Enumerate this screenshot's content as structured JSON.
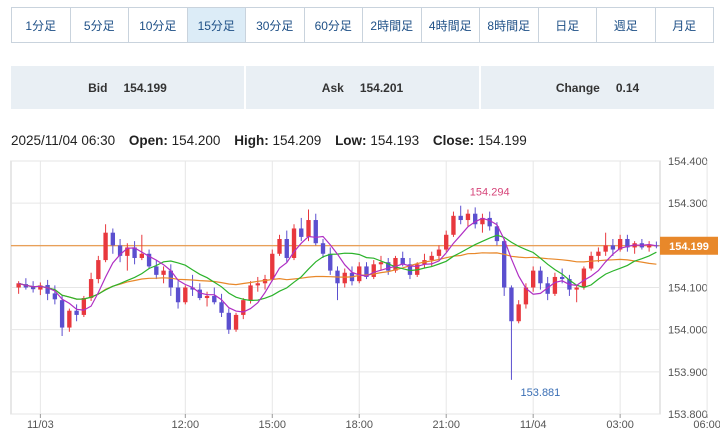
{
  "timeframe_tabs": [
    {
      "label": "1分足",
      "active": false
    },
    {
      "label": "5分足",
      "active": false
    },
    {
      "label": "10分足",
      "active": false
    },
    {
      "label": "15分足",
      "active": true
    },
    {
      "label": "30分足",
      "active": false
    },
    {
      "label": "60分足",
      "active": false
    },
    {
      "label": "2時間足",
      "active": false
    },
    {
      "label": "4時間足",
      "active": false
    },
    {
      "label": "8時間足",
      "active": false
    },
    {
      "label": "日足",
      "active": false
    },
    {
      "label": "週足",
      "active": false
    },
    {
      "label": "月足",
      "active": false
    }
  ],
  "quote": {
    "bid_label": "Bid",
    "bid_value": "154.199",
    "ask_label": "Ask",
    "ask_value": "154.201",
    "change_label": "Change",
    "change_value": "0.14"
  },
  "ohlc": {
    "datetime": "2025/11/04 06:30",
    "open_label": "Open:",
    "open": "154.200",
    "high_label": "High:",
    "high": "154.209",
    "low_label": "Low:",
    "low": "154.193",
    "close_label": "Close:",
    "close": "154.199"
  },
  "colors": {
    "up": "#e8383d",
    "down": "#5b4fcf",
    "ma_short": "#b02fc4",
    "ma_mid": "#2bb32b",
    "ma_long": "#e8882a",
    "current_line": "#e8882a",
    "grid": "#e6e6e6",
    "high_label": "#d6457a",
    "low_label": "#3a6fb5"
  },
  "chart_data": {
    "type": "candlestick",
    "ylim": [
      153.8,
      154.4
    ],
    "y_ticks": [
      "154.400",
      "154.300",
      "154.200",
      "154.100",
      "154.000",
      "153.900",
      "153.800"
    ],
    "x_ticks": [
      {
        "label": "11/03",
        "index": 3
      },
      {
        "label": "12:00",
        "index": 23
      },
      {
        "label": "15:00",
        "index": 35
      },
      {
        "label": "18:00",
        "index": 47
      },
      {
        "label": "21:00",
        "index": 59
      },
      {
        "label": "11/04",
        "index": 71
      },
      {
        "label": "03:00",
        "index": 83
      },
      {
        "label": "06:00",
        "index": 95
      }
    ],
    "current_price": "154.199",
    "annotations": [
      {
        "text": "154.294",
        "index": 65,
        "value": 154.294,
        "position": "above"
      },
      {
        "text": "153.881",
        "index": 72,
        "value": 153.881,
        "position": "below"
      }
    ],
    "candles": [
      [
        154.1,
        154.115,
        154.085,
        154.11
      ],
      [
        154.108,
        154.122,
        154.095,
        154.1
      ],
      [
        154.102,
        154.115,
        154.088,
        154.096
      ],
      [
        154.095,
        154.112,
        154.082,
        154.105
      ],
      [
        154.106,
        154.118,
        154.07,
        154.085
      ],
      [
        154.086,
        154.105,
        154.06,
        154.072
      ],
      [
        154.07,
        154.082,
        153.985,
        154.005
      ],
      [
        154.005,
        154.05,
        153.995,
        154.045
      ],
      [
        154.045,
        154.06,
        154.02,
        154.035
      ],
      [
        154.035,
        154.08,
        154.03,
        154.075
      ],
      [
        154.075,
        154.135,
        154.068,
        154.12
      ],
      [
        154.12,
        154.175,
        154.11,
        154.165
      ],
      [
        154.165,
        154.25,
        154.16,
        154.23
      ],
      [
        154.23,
        154.24,
        154.18,
        154.2
      ],
      [
        154.2,
        154.215,
        154.16,
        154.175
      ],
      [
        154.175,
        154.205,
        154.14,
        154.195
      ],
      [
        154.195,
        154.21,
        154.155,
        154.17
      ],
      [
        154.17,
        154.225,
        154.165,
        154.18
      ],
      [
        154.18,
        154.19,
        154.145,
        154.15
      ],
      [
        154.15,
        154.165,
        154.12,
        154.13
      ],
      [
        154.13,
        154.15,
        154.11,
        154.14
      ],
      [
        154.14,
        154.155,
        154.08,
        154.1
      ],
      [
        154.1,
        154.115,
        154.05,
        154.065
      ],
      [
        154.065,
        154.105,
        154.06,
        154.1
      ],
      [
        154.1,
        154.13,
        154.08,
        154.095
      ],
      [
        154.095,
        154.11,
        154.07,
        154.075
      ],
      [
        154.075,
        154.09,
        154.055,
        154.08
      ],
      [
        154.08,
        154.1,
        154.06,
        154.065
      ],
      [
        154.065,
        154.085,
        154.03,
        154.04
      ],
      [
        154.04,
        154.05,
        153.99,
        154.0
      ],
      [
        154.0,
        154.04,
        153.995,
        154.035
      ],
      [
        154.035,
        154.075,
        154.025,
        154.07
      ],
      [
        154.07,
        154.115,
        154.062,
        154.105
      ],
      [
        154.105,
        154.125,
        154.09,
        154.11
      ],
      [
        154.11,
        154.13,
        154.095,
        154.12
      ],
      [
        154.12,
        154.19,
        154.115,
        154.18
      ],
      [
        154.18,
        154.225,
        154.175,
        154.215
      ],
      [
        154.215,
        154.235,
        154.16,
        154.17
      ],
      [
        154.17,
        154.25,
        154.165,
        154.24
      ],
      [
        154.24,
        154.265,
        154.21,
        154.22
      ],
      [
        154.22,
        154.285,
        154.21,
        154.26
      ],
      [
        154.26,
        154.275,
        154.2,
        154.205
      ],
      [
        154.205,
        154.215,
        154.17,
        154.18
      ],
      [
        154.18,
        154.195,
        154.13,
        154.14
      ],
      [
        154.14,
        154.15,
        154.07,
        154.11
      ],
      [
        154.11,
        154.145,
        154.1,
        154.135
      ],
      [
        154.135,
        154.15,
        154.105,
        154.115
      ],
      [
        154.115,
        154.16,
        154.11,
        154.15
      ],
      [
        154.15,
        154.16,
        154.12,
        154.125
      ],
      [
        154.125,
        154.165,
        154.12,
        154.155
      ],
      [
        154.155,
        154.175,
        154.14,
        154.16
      ],
      [
        154.16,
        154.17,
        154.13,
        154.14
      ],
      [
        154.14,
        154.175,
        154.135,
        154.17
      ],
      [
        154.17,
        154.185,
        154.15,
        154.155
      ],
      [
        154.155,
        154.17,
        154.12,
        154.13
      ],
      [
        154.13,
        154.16,
        154.125,
        154.155
      ],
      [
        154.155,
        154.18,
        154.145,
        154.165
      ],
      [
        154.165,
        154.185,
        154.15,
        154.175
      ],
      [
        154.175,
        154.2,
        154.165,
        154.19
      ],
      [
        154.19,
        154.235,
        154.185,
        154.225
      ],
      [
        154.225,
        154.28,
        154.22,
        154.27
      ],
      [
        154.27,
        154.294,
        154.25,
        154.26
      ],
      [
        154.26,
        154.285,
        154.245,
        154.275
      ],
      [
        154.275,
        154.29,
        154.24,
        154.25
      ],
      [
        154.25,
        154.275,
        154.23,
        154.265
      ],
      [
        154.265,
        154.28,
        154.235,
        154.245
      ],
      [
        154.245,
        154.255,
        154.2,
        154.21
      ],
      [
        154.21,
        154.215,
        154.08,
        154.1
      ],
      [
        154.1,
        154.105,
        153.881,
        154.02
      ],
      [
        154.02,
        154.07,
        154.015,
        154.06
      ],
      [
        154.06,
        154.11,
        154.05,
        154.1
      ],
      [
        154.1,
        154.15,
        154.09,
        154.14
      ],
      [
        154.14,
        154.15,
        154.095,
        154.11
      ],
      [
        154.11,
        154.125,
        154.07,
        154.085
      ],
      [
        154.085,
        154.135,
        154.08,
        154.125
      ],
      [
        154.125,
        154.145,
        154.11,
        154.12
      ],
      [
        154.12,
        154.13,
        154.08,
        154.095
      ],
      [
        154.095,
        154.105,
        154.065,
        154.1
      ],
      [
        154.1,
        154.15,
        154.095,
        154.145
      ],
      [
        154.145,
        154.185,
        154.14,
        154.175
      ],
      [
        154.175,
        154.195,
        154.16,
        154.185
      ],
      [
        154.185,
        154.23,
        154.175,
        154.2
      ],
      [
        154.2,
        154.215,
        154.175,
        154.19
      ],
      [
        154.19,
        154.225,
        154.185,
        154.215
      ],
      [
        154.215,
        154.225,
        154.185,
        154.195
      ],
      [
        154.195,
        154.21,
        154.18,
        154.205
      ],
      [
        154.205,
        154.215,
        154.19,
        154.195
      ],
      [
        154.195,
        154.21,
        154.185,
        154.2
      ],
      [
        154.2,
        154.209,
        154.193,
        154.199
      ]
    ]
  }
}
